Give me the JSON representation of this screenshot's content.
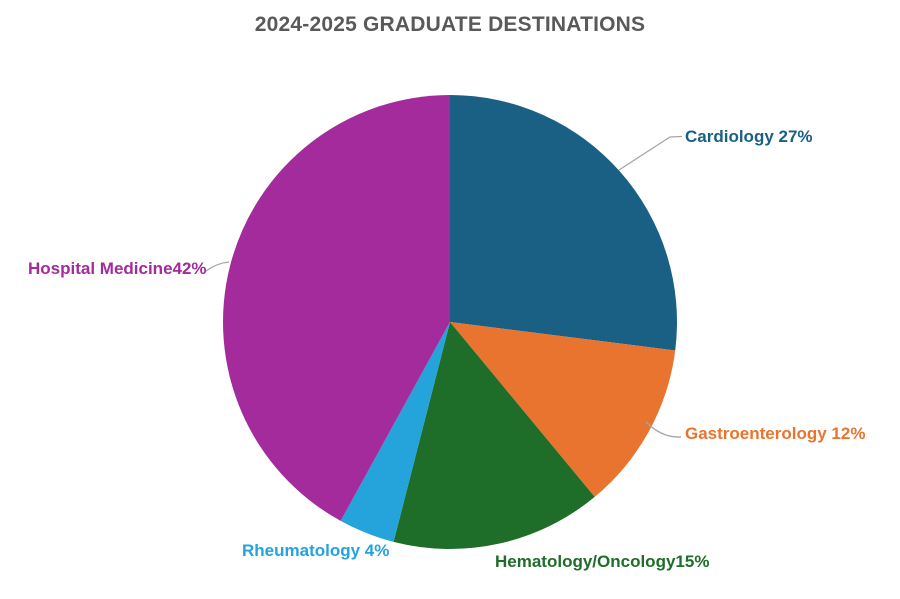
{
  "title": "2024-2025 GRADUATE DESTINATIONS",
  "colors": {
    "title_text": "#595959",
    "leader_line": "#A6A6A6",
    "background": "#FFFFFF"
  },
  "chart_data": {
    "type": "pie",
    "title": "2024-2025 GRADUATE DESTINATIONS",
    "start_angle": "12 o'clock, clockwise",
    "legend_position": "none",
    "label_style": "outside labels with leader lines, colored to match slice",
    "slices": [
      {
        "id": "cardiology",
        "label": "Cardiology",
        "value": 27,
        "display": "Cardiology 27%",
        "color": "#1A5F84"
      },
      {
        "id": "gastroenterology",
        "label": "Gastroenterology",
        "value": 12,
        "display": "Gastroenterology 12%",
        "color": "#E9742F"
      },
      {
        "id": "hematology-oncology",
        "label": "Hematology/Oncology",
        "value": 15,
        "display": "Hematology/Oncology15%",
        "color": "#1E6D28"
      },
      {
        "id": "rheumatology",
        "label": "Rheumatology",
        "value": 4,
        "display": "Rheumatology 4%",
        "color": "#25A3DB"
      },
      {
        "id": "hospital-medicine",
        "label": "Hospital Medicine",
        "value": 42,
        "display": "Hospital Medicine42%",
        "color": "#A32B9B"
      }
    ]
  }
}
